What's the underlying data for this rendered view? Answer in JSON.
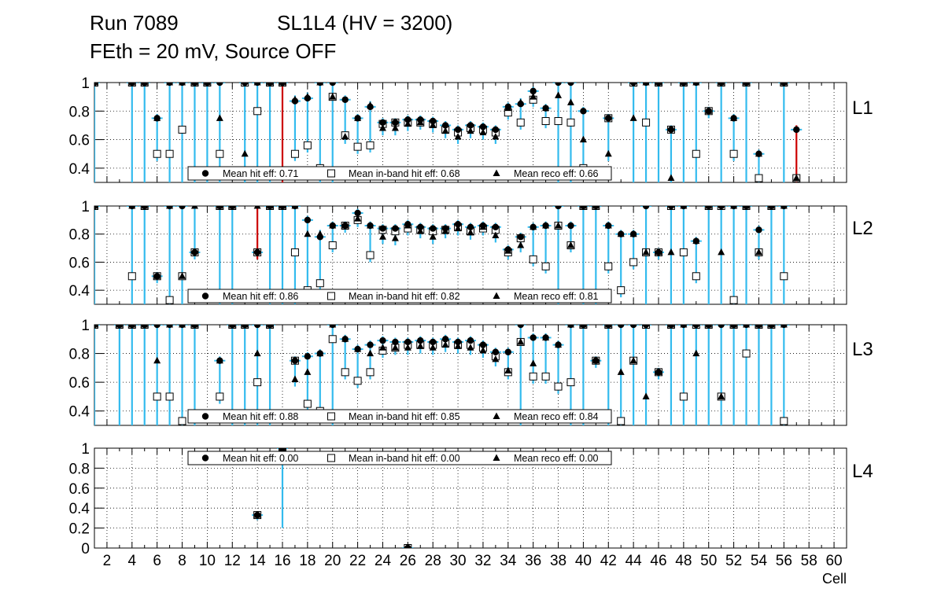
{
  "header": {
    "run": "Run 7089",
    "chamber": "SL1L4 (HV = 3200)",
    "conditions": "FEth = 20 mV, Source OFF"
  },
  "chart_data": {
    "type": "scatter",
    "xlabel": "Cell",
    "xlim": [
      1,
      61
    ],
    "x_ticks": [
      2,
      4,
      6,
      8,
      10,
      12,
      14,
      16,
      18,
      20,
      22,
      24,
      26,
      28,
      30,
      32,
      34,
      36,
      38,
      40,
      42,
      44,
      46,
      48,
      50,
      52,
      54,
      56,
      58,
      60
    ],
    "colors": {
      "error_bar": "#33bbee",
      "alt_error": "#cc0000",
      "violet_error": "#8800cc",
      "marker": "#000000"
    },
    "legend_markers": {
      "hit": "circle",
      "inband": "open-square",
      "reco": "triangle"
    },
    "panels": [
      {
        "label": "L1",
        "ylim": [
          0.3,
          1.0
        ],
        "y_ticks": [
          0.4,
          0.6,
          0.8,
          1
        ],
        "legend": [
          "Mean hit  eff: 0.71",
          "Mean in-band hit eff: 0.68",
          "Mean reco eff: 0.66"
        ],
        "cells": [
          [
            1,
            1,
            1,
            1
          ],
          [
            4,
            1,
            1,
            1
          ],
          [
            5,
            1,
            1,
            1
          ],
          [
            6,
            0.75,
            0.5,
            0.75
          ],
          [
            7,
            1,
            0.5,
            1
          ],
          [
            8,
            1,
            0.67,
            1
          ],
          [
            9,
            1,
            1,
            1
          ],
          [
            10,
            1,
            1,
            1
          ],
          [
            11,
            1,
            0.5,
            0.75
          ],
          [
            13,
            1,
            1,
            0.5
          ],
          [
            14,
            1,
            0.8,
            1
          ],
          [
            15,
            1,
            1,
            1
          ],
          [
            16,
            1,
            1,
            1
          ],
          [
            17,
            0.87,
            0.5,
            0.88
          ],
          [
            18,
            0.89,
            0.56,
            0.9
          ],
          [
            19,
            1,
            0.4,
            1
          ],
          [
            20,
            1,
            0.9,
            0.9
          ],
          [
            21,
            0.88,
            0.63,
            0.62
          ],
          [
            22,
            0.75,
            0.55,
            0.75
          ],
          [
            23,
            0.83,
            0.56,
            0.84
          ],
          [
            24,
            0.72,
            0.71,
            0.68
          ],
          [
            25,
            0.72,
            0.72,
            0.68
          ],
          [
            26,
            0.74,
            0.72,
            0.71
          ],
          [
            27,
            0.74,
            0.72,
            0.72
          ],
          [
            28,
            0.73,
            0.71,
            0.7
          ],
          [
            29,
            0.7,
            0.67,
            0.66
          ],
          [
            30,
            0.67,
            0.65,
            0.62
          ],
          [
            31,
            0.7,
            0.68,
            0.66
          ],
          [
            32,
            0.69,
            0.67,
            0.65
          ],
          [
            33,
            0.67,
            0.65,
            0.62
          ],
          [
            34,
            0.83,
            0.79,
            0.82
          ],
          [
            35,
            0.85,
            0.72,
            0.86
          ],
          [
            36,
            0.94,
            0.88,
            0.9
          ],
          [
            37,
            0.82,
            0.73,
            0.82
          ],
          [
            38,
            1,
            0.73,
            0.91
          ],
          [
            39,
            1,
            0.72,
            0.86
          ],
          [
            40,
            0.8,
            0.4,
            0.6
          ],
          [
            42,
            0.75,
            0.75,
            0.5
          ],
          [
            44,
            1,
            1,
            0.75
          ],
          [
            45,
            1,
            0.72,
            1
          ],
          [
            46,
            1,
            1,
            1
          ],
          [
            47,
            0.67,
            0.67,
            0.33
          ],
          [
            48,
            1,
            1,
            1
          ],
          [
            49,
            1,
            0.5,
            1
          ],
          [
            50,
            0.8,
            0.8,
            0.8
          ],
          [
            51,
            1,
            1,
            1
          ],
          [
            52,
            0.75,
            0.5,
            0.75
          ],
          [
            53,
            1,
            1,
            1
          ],
          [
            54,
            0.5,
            0.33,
            0.5
          ],
          [
            56,
            1,
            1,
            1
          ],
          [
            57,
            0.67,
            0.33,
            0.33
          ]
        ]
      },
      {
        "label": "L2",
        "ylim": [
          0.3,
          1.0
        ],
        "y_ticks": [
          0.4,
          0.6,
          0.8,
          1
        ],
        "legend": [
          "Mean hit  eff: 0.86",
          "Mean in-band hit eff: 0.82",
          "Mean reco eff: 0.81"
        ],
        "cells": [
          [
            1,
            1,
            1,
            1
          ],
          [
            4,
            1,
            0.5,
            1
          ],
          [
            5,
            1,
            1,
            1
          ],
          [
            6,
            0.5,
            0.5,
            0.5
          ],
          [
            7,
            1,
            0.33,
            1
          ],
          [
            8,
            1,
            0.5,
            0.5
          ],
          [
            9,
            0.67,
            0.67,
            1
          ],
          [
            11,
            1,
            1,
            1
          ],
          [
            12,
            1,
            1,
            1
          ],
          [
            14,
            0.67,
            0.67,
            1
          ],
          [
            15,
            1,
            1,
            1
          ],
          [
            16,
            1,
            1,
            1
          ],
          [
            17,
            1,
            0.67,
            1
          ],
          [
            18,
            0.9,
            0.4,
            0.8
          ],
          [
            19,
            0.78,
            0.45,
            0.8
          ],
          [
            20,
            0.86,
            0.72,
            0.86
          ],
          [
            21,
            0.86,
            0.86,
            0.86
          ],
          [
            22,
            0.95,
            0.9,
            0.91
          ],
          [
            23,
            0.86,
            0.65,
            0.86
          ],
          [
            24,
            0.84,
            0.83,
            0.78
          ],
          [
            25,
            0.84,
            0.82,
            0.77
          ],
          [
            26,
            0.87,
            0.84,
            0.86
          ],
          [
            27,
            0.85,
            0.83,
            0.82
          ],
          [
            28,
            0.84,
            0.82,
            0.78
          ],
          [
            29,
            0.84,
            0.83,
            0.82
          ],
          [
            30,
            0.87,
            0.85,
            0.84
          ],
          [
            31,
            0.85,
            0.82,
            0.81
          ],
          [
            32,
            0.86,
            0.84,
            0.85
          ],
          [
            33,
            0.85,
            0.83,
            0.79
          ],
          [
            34,
            0.69,
            0.67,
            0.68
          ],
          [
            35,
            0.78,
            0.77,
            0.72
          ],
          [
            36,
            0.85,
            0.62,
            0.85
          ],
          [
            37,
            0.86,
            0.57,
            0.86
          ],
          [
            38,
            1,
            0.86,
            0.86
          ],
          [
            39,
            0.86,
            0.72,
            0.72
          ],
          [
            40,
            1,
            1,
            1
          ],
          [
            41,
            1,
            1,
            1
          ],
          [
            42,
            0.86,
            0.57,
            0.86
          ],
          [
            43,
            0.8,
            0.4,
            0.8
          ],
          [
            44,
            0.8,
            0.6,
            0.8
          ],
          [
            45,
            1,
            0.67,
            0.67
          ],
          [
            46,
            0.67,
            0.67,
            0.67
          ],
          [
            47,
            1,
            1,
            0.67
          ],
          [
            48,
            1,
            0.67,
            1
          ],
          [
            49,
            0.75,
            0.5,
            0.75
          ],
          [
            50,
            1,
            1,
            1
          ],
          [
            51,
            1,
            1,
            0.67
          ],
          [
            52,
            1,
            0.33,
            1
          ],
          [
            53,
            1,
            1,
            1
          ],
          [
            54,
            0.83,
            0.67,
            0.67
          ],
          [
            55,
            1,
            1,
            1
          ],
          [
            56,
            1,
            0.5,
            1
          ]
        ]
      },
      {
        "label": "L3",
        "ylim": [
          0.3,
          1.0
        ],
        "y_ticks": [
          0.4,
          0.6,
          0.8,
          1
        ],
        "legend": [
          "Mean hit  eff: 0.88",
          "Mean in-band hit eff: 0.85",
          "Mean reco eff: 0.84"
        ],
        "cells": [
          [
            1,
            1,
            1,
            1
          ],
          [
            3,
            1,
            1,
            1
          ],
          [
            4,
            1,
            1,
            1
          ],
          [
            5,
            1,
            1,
            1
          ],
          [
            6,
            1,
            0.5,
            0.75
          ],
          [
            7,
            1,
            0.5,
            1
          ],
          [
            8,
            1,
            0.33,
            1
          ],
          [
            9,
            1,
            1,
            1
          ],
          [
            11,
            0.75,
            0.5,
            0.75
          ],
          [
            12,
            1,
            1,
            1
          ],
          [
            13,
            1,
            1,
            1
          ],
          [
            14,
            1,
            0.6,
            0.8
          ],
          [
            15,
            1,
            1,
            1
          ],
          [
            17,
            0.75,
            0.75,
            0.62
          ],
          [
            18,
            0.78,
            0.45,
            0.67
          ],
          [
            19,
            0.8,
            0.4,
            0.8
          ],
          [
            20,
            1,
            0.9,
            1
          ],
          [
            21,
            0.9,
            0.67,
            0.9
          ],
          [
            22,
            0.83,
            0.61,
            0.83
          ],
          [
            23,
            0.86,
            0.67,
            0.8
          ],
          [
            24,
            0.89,
            0.82,
            0.84
          ],
          [
            25,
            0.88,
            0.84,
            0.84
          ],
          [
            26,
            0.88,
            0.86,
            0.84
          ],
          [
            27,
            0.89,
            0.86,
            0.85
          ],
          [
            28,
            0.88,
            0.86,
            0.84
          ],
          [
            29,
            0.9,
            0.87,
            0.86
          ],
          [
            30,
            0.88,
            0.86,
            0.85
          ],
          [
            31,
            0.89,
            0.86,
            0.84
          ],
          [
            32,
            0.86,
            0.84,
            0.82
          ],
          [
            33,
            0.81,
            0.78,
            0.76
          ],
          [
            34,
            0.81,
            0.67,
            0.68
          ],
          [
            35,
            1,
            0.88,
            0.88
          ],
          [
            36,
            0.91,
            0.64,
            0.73
          ],
          [
            37,
            0.91,
            0.64,
            0.91
          ],
          [
            38,
            0.86,
            0.57,
            0.86
          ],
          [
            39,
            1,
            0.6,
            1
          ],
          [
            40,
            1,
            1,
            1
          ],
          [
            41,
            0.75,
            0.75,
            0.75
          ],
          [
            42,
            1,
            1,
            1
          ],
          [
            43,
            1,
            0.33,
            0.67
          ],
          [
            44,
            1,
            0.75,
            0.75
          ],
          [
            45,
            1,
            1,
            0.5
          ],
          [
            46,
            0.67,
            0.67,
            0.67
          ],
          [
            47,
            1,
            1,
            1
          ],
          [
            48,
            1,
            0.5,
            1
          ],
          [
            49,
            1,
            1,
            0.8
          ],
          [
            50,
            1,
            1,
            1
          ],
          [
            51,
            1,
            0.5,
            0.5
          ],
          [
            52,
            1,
            1,
            1
          ],
          [
            53,
            1,
            0.8,
            1
          ],
          [
            54,
            1,
            1,
            1
          ],
          [
            55,
            1,
            1,
            1
          ],
          [
            56,
            1,
            0.33,
            1
          ]
        ]
      },
      {
        "label": "L4",
        "ylim": [
          0,
          1.0
        ],
        "y_ticks": [
          0,
          0.2,
          0.4,
          0.6,
          0.8,
          1
        ],
        "legend": [
          "Mean hit  eff: 0.00",
          "Mean in-band hit eff: 0.00",
          "Mean reco eff: 0.00"
        ],
        "cells": [
          [
            14,
            0.33,
            0.33,
            0.33
          ],
          [
            16,
            1,
            1,
            1
          ],
          [
            26,
            0,
            0,
            0
          ]
        ]
      }
    ]
  }
}
